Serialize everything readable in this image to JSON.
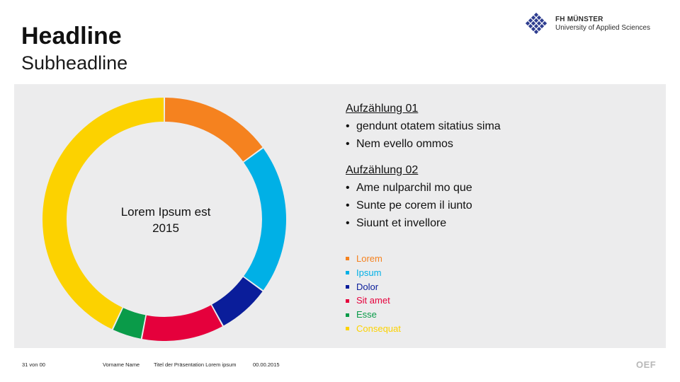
{
  "slide": {
    "headline": "Headline",
    "subheadline": "Subheadline",
    "center_label_line1": "Lorem Ipsum est",
    "center_label_line2": "2015"
  },
  "logo": {
    "line1": "FH MÜNSTER",
    "line2": "University of Applied Sciences"
  },
  "lists": [
    {
      "heading": "Aufzählung 01",
      "items": [
        "gendunt otatem sitatius sima",
        "Nem evello ommos"
      ]
    },
    {
      "heading": "Aufzählung 02",
      "items": [
        "Ame nulparchil mo que",
        "Sunte pe corem il iunto",
        "Siuunt et invellore"
      ]
    }
  ],
  "footer": {
    "page": "31 von 00",
    "author": "Vorname Name",
    "title": "Titel der Präsentation Lorem ipsum",
    "date": "00.00.2015",
    "mark": "OEF"
  },
  "colors": {
    "logo_blue": "#2e3d8f",
    "panel": "#ececed"
  },
  "chart_data": {
    "type": "pie",
    "variant": "donut",
    "categories": [
      "Lorem",
      "Ipsum",
      "Dolor",
      "Sit amet",
      "Esse",
      "Consequat"
    ],
    "values": [
      15,
      20,
      7,
      11,
      4,
      43
    ],
    "colors": [
      "#f5821f",
      "#00b0e6",
      "#0a1d9a",
      "#e5003c",
      "#0a9b49",
      "#fcd200"
    ],
    "legend_position": "right"
  }
}
